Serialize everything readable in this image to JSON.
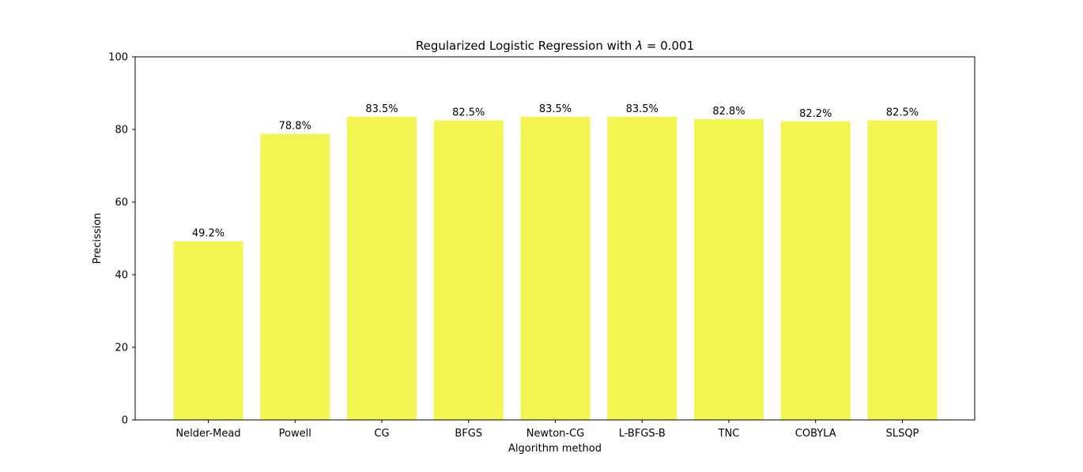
{
  "chart_data": {
    "type": "bar",
    "title_prefix": "Regularized Logistic Regression with ",
    "title_symbol": "λ",
    "title_suffix": "  = 0.001",
    "xlabel": "Algorithm method",
    "ylabel": "Precission",
    "categories": [
      "Nelder-Mead",
      "Powell",
      "CG",
      "BFGS",
      "Newton-CG",
      "L-BFGS-B",
      "TNC",
      "COBYLA",
      "SLSQP"
    ],
    "values": [
      49.2,
      78.8,
      83.5,
      82.5,
      83.5,
      83.5,
      82.8,
      82.2,
      82.5
    ],
    "value_labels": [
      "49.2%",
      "78.8%",
      "83.5%",
      "82.5%",
      "83.5%",
      "83.5%",
      "82.8%",
      "82.2%",
      "82.5%"
    ],
    "yticks": [
      "0",
      "20",
      "40",
      "60",
      "80",
      "100"
    ],
    "ylim": [
      0,
      100
    ],
    "grid": false,
    "bar_color": "#f2f552"
  }
}
